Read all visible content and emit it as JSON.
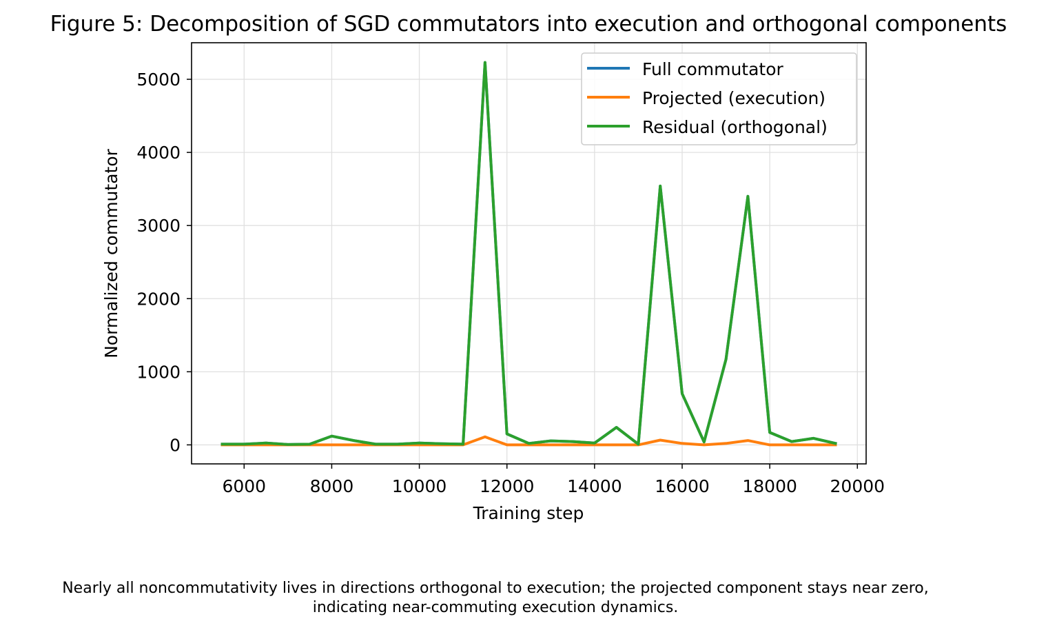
{
  "chart_data": {
    "type": "line",
    "title": "Figure 5: Decomposition of SGD commutators into execution and orthogonal components",
    "xlabel": "Training step",
    "ylabel": "Normalized commutator",
    "xlim": [
      4800,
      20200
    ],
    "ylim": [
      -260,
      5500
    ],
    "xticks": [
      6000,
      8000,
      10000,
      12000,
      14000,
      16000,
      18000,
      20000
    ],
    "yticks": [
      0,
      1000,
      2000,
      3000,
      4000,
      5000
    ],
    "grid": true,
    "legend_position": "top-right",
    "x": [
      5500,
      6000,
      6500,
      7000,
      7500,
      8000,
      8500,
      9000,
      9500,
      10000,
      10500,
      11000,
      11500,
      12000,
      12500,
      13000,
      13500,
      14000,
      14500,
      15000,
      15500,
      16000,
      16500,
      17000,
      17500,
      18000,
      18500,
      19000,
      19500
    ],
    "series": [
      {
        "name": "Full commutator",
        "color": "#1f77b4",
        "values": [
          10,
          10,
          25,
          5,
          10,
          120,
          60,
          10,
          10,
          25,
          15,
          10,
          5230,
          150,
          20,
          55,
          45,
          25,
          240,
          10,
          3540,
          700,
          40,
          1170,
          3400,
          170,
          45,
          90,
          20
        ]
      },
      {
        "name": "Projected (execution)",
        "color": "#ff7f0e",
        "values": [
          0,
          0,
          0,
          0,
          0,
          0,
          0,
          0,
          0,
          0,
          0,
          0,
          110,
          0,
          0,
          0,
          0,
          0,
          0,
          0,
          65,
          20,
          0,
          20,
          60,
          0,
          0,
          0,
          0
        ]
      },
      {
        "name": "Residual (orthogonal)",
        "color": "#2ca02c",
        "values": [
          10,
          10,
          25,
          5,
          10,
          120,
          60,
          10,
          10,
          25,
          15,
          10,
          5230,
          150,
          20,
          55,
          45,
          25,
          240,
          10,
          3540,
          700,
          40,
          1170,
          3400,
          170,
          45,
          90,
          20
        ]
      }
    ]
  },
  "caption": {
    "line1": "Nearly all noncommutativity lives in directions orthogonal to execution; the projected component stays near zero,",
    "line2": "indicating near-commuting execution dynamics."
  }
}
